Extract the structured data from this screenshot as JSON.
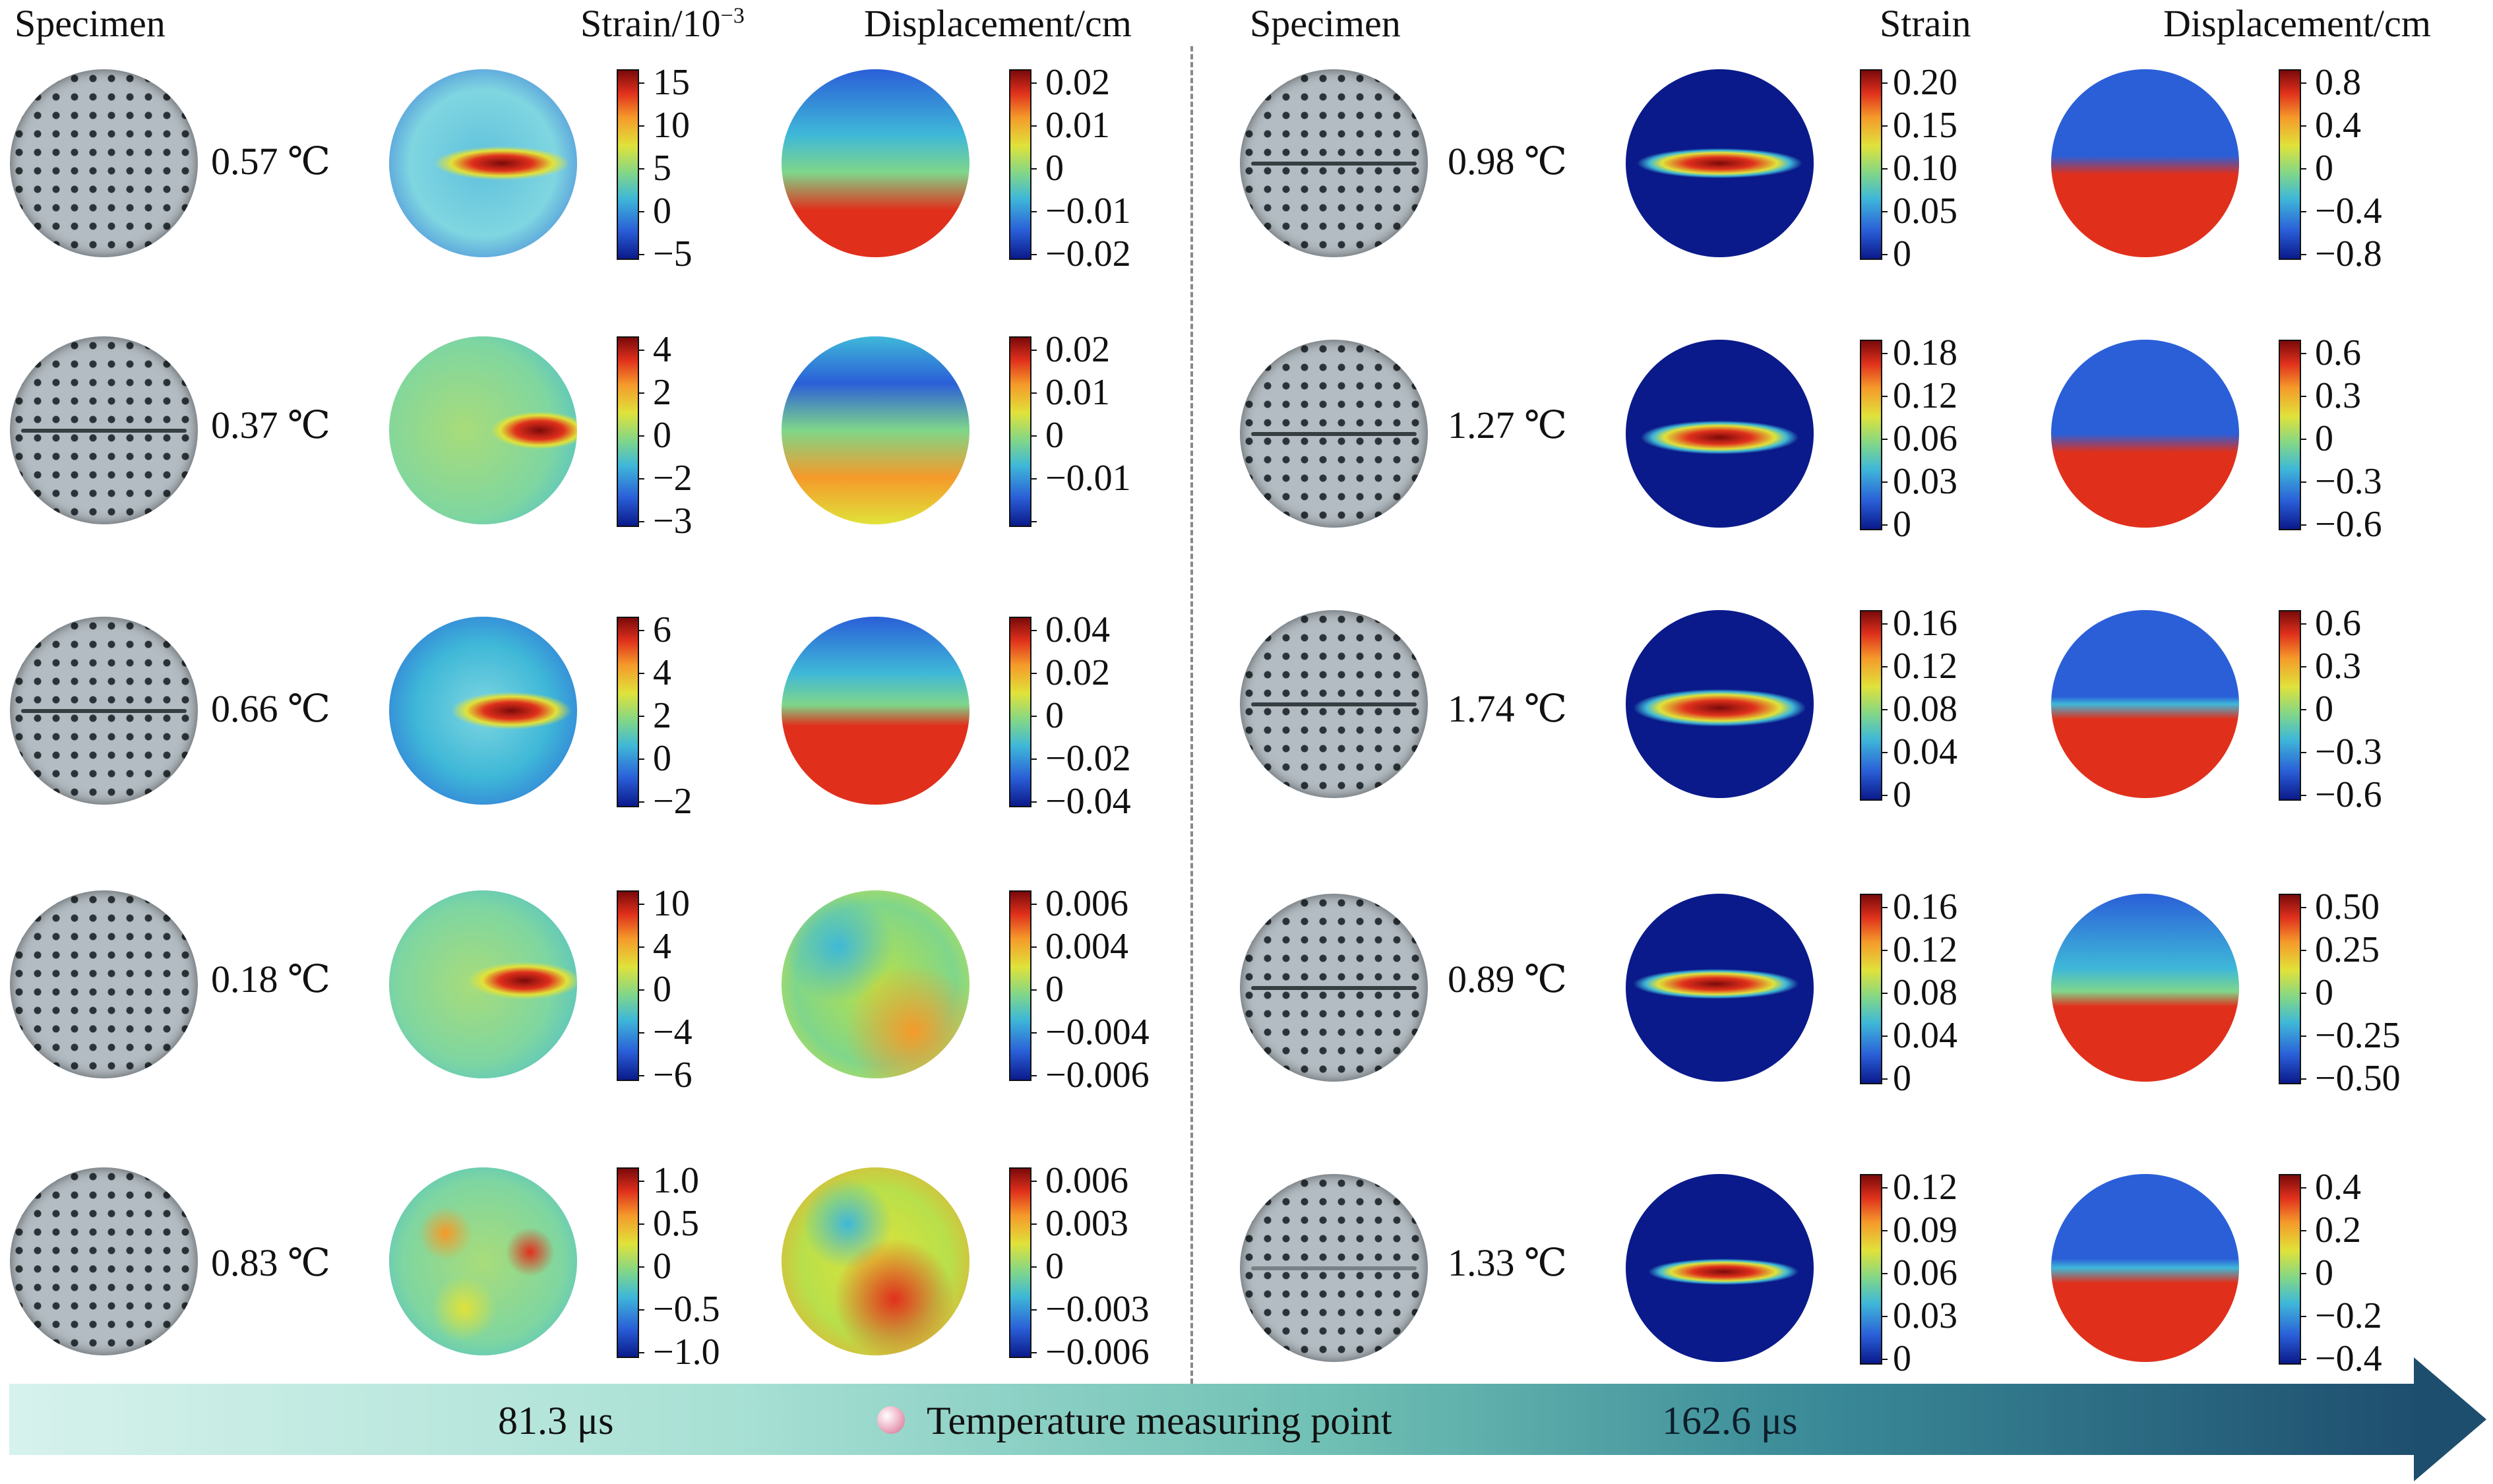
{
  "headers": {
    "left_specimen": "Specimen",
    "left_strain": "Strain/10",
    "left_strain_exp": "−3",
    "left_displacement": "Displacement/cm",
    "right_specimen": "Specimen",
    "right_strain": "Strain",
    "right_displacement": "Displacement/cm"
  },
  "left_rows": [
    {
      "temperature": "0.57 ℃",
      "strain_ticks": [
        "15",
        "10",
        "5",
        "0",
        "−5"
      ],
      "displacement_ticks": [
        "0.02",
        "0.01",
        "0",
        "−0.01",
        "−0.02"
      ]
    },
    {
      "temperature": "0.37 ℃",
      "strain_ticks": [
        "4",
        "2",
        "0",
        "−2",
        "−3"
      ],
      "displacement_ticks": [
        "0.02",
        "0.01",
        "0",
        "−0.01"
      ]
    },
    {
      "temperature": "0.66 ℃",
      "strain_ticks": [
        "6",
        "4",
        "2",
        "0",
        "−2"
      ],
      "displacement_ticks": [
        "0.04",
        "0.02",
        "0",
        "−0.02",
        "−0.04"
      ]
    },
    {
      "temperature": "0.18 ℃",
      "strain_ticks": [
        "10",
        "4",
        "0",
        "−4",
        "−6"
      ],
      "displacement_ticks": [
        "0.006",
        "0.004",
        "0",
        "−0.004",
        "−0.006"
      ]
    },
    {
      "temperature": "0.83 ℃",
      "strain_ticks": [
        "1.0",
        "0.5",
        "0",
        "−0.5",
        "−1.0"
      ],
      "displacement_ticks": [
        "0.006",
        "0.003",
        "0",
        "−0.003",
        "−0.006"
      ]
    }
  ],
  "right_rows": [
    {
      "temperature": "0.98 ℃",
      "strain_ticks": [
        "0.20",
        "0.15",
        "0.10",
        "0.05",
        "0"
      ],
      "displacement_ticks": [
        "0.8",
        "0.4",
        "0",
        "−0.4",
        "−0.8"
      ]
    },
    {
      "temperature": "1.27 ℃",
      "strain_ticks": [
        "0.18",
        "0.12",
        "0.06",
        "0.03",
        "0"
      ],
      "displacement_ticks": [
        "0.6",
        "0.3",
        "0",
        "−0.3",
        "−0.6"
      ]
    },
    {
      "temperature": "1.74 ℃",
      "strain_ticks": [
        "0.16",
        "0.12",
        "0.08",
        "0.04",
        "0"
      ],
      "displacement_ticks": [
        "0.6",
        "0.3",
        "0",
        "−0.3",
        "−0.6"
      ]
    },
    {
      "temperature": "0.89 ℃",
      "strain_ticks": [
        "0.16",
        "0.12",
        "0.08",
        "0.04",
        "0"
      ],
      "displacement_ticks": [
        "0.50",
        "0.25",
        "0",
        "−0.25",
        "−0.50"
      ]
    },
    {
      "temperature": "1.33 ℃",
      "strain_ticks": [
        "0.12",
        "0.09",
        "0.06",
        "0.03",
        "0"
      ],
      "displacement_ticks": [
        "0.4",
        "0.2",
        "0",
        "−0.2",
        "−0.4"
      ]
    }
  ],
  "timeline": {
    "t1": "81.3 μs",
    "legend": "Temperature measuring point",
    "t2": "162.6 μs"
  },
  "colors": {
    "colormap": [
      "#0a1a8a",
      "#2a5fd8",
      "#3fb8d8",
      "#7fd68a",
      "#e0e23a",
      "#f59a2a",
      "#e0301c",
      "#7a0a0a"
    ],
    "timebar_start": "#d6f2ec",
    "timebar_end": "#1e4e6e"
  }
}
